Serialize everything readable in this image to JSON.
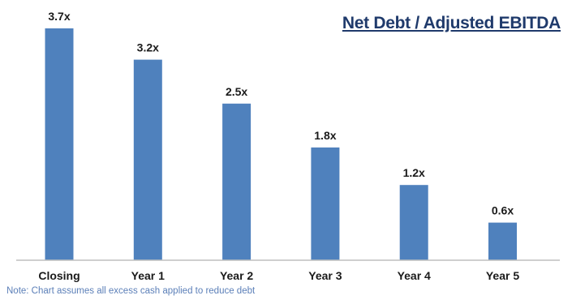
{
  "chart_data": {
    "type": "bar",
    "title": "Net Debt / Adjusted EBITDA",
    "categories": [
      "Closing",
      "Year 1",
      "Year 2",
      "Year 3",
      "Year 4",
      "Year 5"
    ],
    "values": [
      3.7,
      3.2,
      2.5,
      1.8,
      1.2,
      0.6
    ],
    "value_labels": [
      "3.7x",
      "3.2x",
      "2.5x",
      "1.8x",
      "1.2x",
      "0.6x"
    ],
    "xlabel": "",
    "ylabel": "",
    "ylim": [
      0,
      3.7
    ],
    "grid": false,
    "legend": "none",
    "note": "Note: Chart assumes all excess cash applied to reduce debt"
  },
  "colors": {
    "bar": "#4f81bd",
    "axis": "#bfbfbf",
    "title": "#1f3a6b",
    "note": "#5b7fb8"
  }
}
